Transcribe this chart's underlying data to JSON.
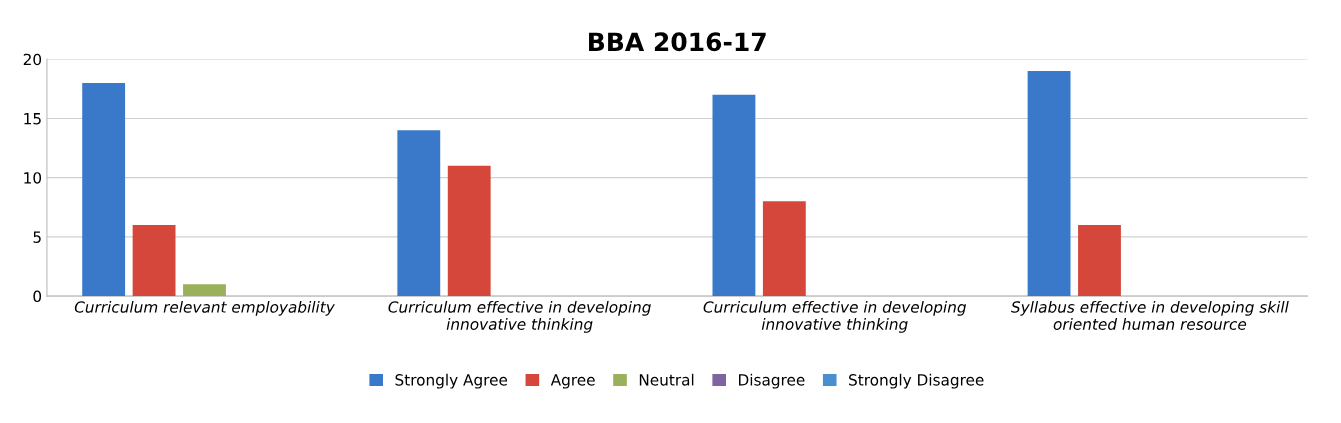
{
  "chart_data": {
    "type": "bar",
    "title": "BBA 2016-17",
    "categories": [
      "Curriculum relevant employability",
      "Curriculum effective in developing\ninnovative thinking",
      "Curriculum effective in developing\ninnovative thinking",
      "Syllabus effective in developing skill\noriented human resource"
    ],
    "series": [
      {
        "name": "Strongly Agree",
        "color": "#3a78c9",
        "values": [
          18,
          14,
          17,
          19
        ]
      },
      {
        "name": "Agree",
        "color": "#d5473a",
        "values": [
          6,
          11,
          8,
          6
        ]
      },
      {
        "name": "Neutral",
        "color": "#9bb05a",
        "values": [
          1,
          0,
          0,
          0
        ]
      },
      {
        "name": "Disagree",
        "color": "#8064a2",
        "values": [
          0,
          0,
          0,
          0
        ]
      },
      {
        "name": "Strongly Disagree",
        "color": "#4a8fd0",
        "values": [
          0,
          0,
          0,
          0
        ]
      }
    ],
    "ylim": [
      0,
      20
    ],
    "yticks": [
      0,
      5,
      10,
      15,
      20
    ],
    "grid": "y",
    "legend": "bottom"
  }
}
